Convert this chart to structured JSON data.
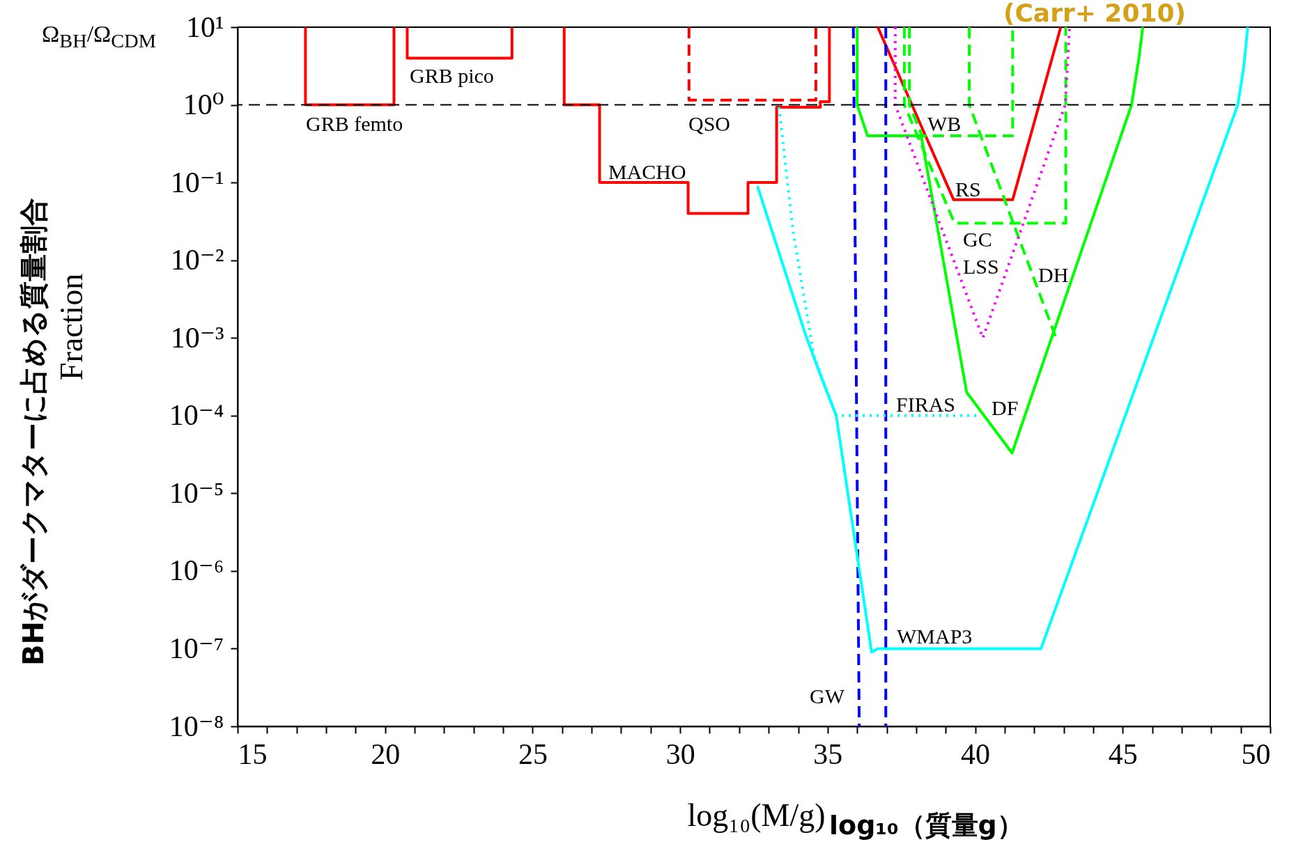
{
  "chart_data": {
    "type": "line",
    "xlabel": "log₁₀(M/g)",
    "ylabel": "Fraction",
    "log": "y",
    "xlim": [
      15,
      50
    ],
    "xticks": [
      15,
      {
        "value": 16,
        "label": null
      },
      {
        "value": 17,
        "label": null
      },
      {
        "value": 18,
        "label": null
      },
      {
        "value": 19,
        "label": null
      },
      20,
      {
        "value": 21,
        "label": null
      },
      {
        "value": 22,
        "label": null
      },
      {
        "value": 23,
        "label": null
      },
      {
        "value": 24,
        "label": null
      },
      25,
      {
        "value": 26,
        "label": null
      },
      {
        "value": 27,
        "label": null
      },
      {
        "value": 28,
        "label": null
      },
      {
        "value": 29,
        "label": null
      },
      30,
      {
        "value": 31,
        "label": null
      },
      {
        "value": 32,
        "label": null
      },
      {
        "value": 33,
        "label": null
      },
      {
        "value": 34,
        "label": null
      },
      35,
      {
        "value": 36,
        "label": null
      },
      {
        "value": 37,
        "label": null
      },
      {
        "value": 38,
        "label": null
      },
      {
        "value": 39,
        "label": null
      },
      40,
      {
        "value": 41,
        "label": null
      },
      {
        "value": 42,
        "label": null
      },
      {
        "value": 43,
        "label": null
      },
      {
        "value": 44,
        "label": null
      },
      45,
      {
        "value": 46,
        "label": null
      },
      {
        "value": 47,
        "label": null
      },
      {
        "value": 48,
        "label": null
      },
      {
        "value": 49,
        "label": null
      },
      50
    ],
    "ylim": [
      1e-08,
      10
    ],
    "yticks": [
      {
        "value": 10,
        "label": "10¹"
      },
      {
        "value": 1,
        "label": "10⁰"
      },
      {
        "value": 0.1,
        "label": "10⁻¹"
      },
      {
        "value": 0.01,
        "label": "10⁻²"
      },
      {
        "value": 0.001,
        "label": "10⁻³"
      },
      {
        "value": 0.0001,
        "label": "10⁻⁴"
      },
      {
        "value": 1e-05,
        "label": "10⁻⁵"
      },
      {
        "value": 1e-06,
        "label": "10⁻⁶"
      },
      {
        "value": 1e-07,
        "label": "10⁻⁷"
      },
      {
        "value": 1e-08,
        "label": "10⁻⁸"
      }
    ],
    "series": [
      {
        "color": "#ff0000",
        "line_style": "solid",
        "x": [
          17.3,
          17.3,
          20.3,
          20.3
        ],
        "values": [
          10,
          1,
          1,
          10
        ]
      },
      {
        "color": "#ff0000",
        "line_style": "solid",
        "x": [
          20.75,
          20.75,
          24.3,
          24.3
        ],
        "values": [
          10,
          4,
          4,
          10
        ]
      },
      {
        "color": "#ff0000",
        "line_style": "solid",
        "x": [
          26.07,
          26.07,
          27.27,
          27.27,
          30.27,
          30.27,
          32.3,
          32.3,
          33.27,
          33.27,
          34.75,
          34.75,
          35.06,
          35.06
        ],
        "values": [
          10,
          1,
          1,
          0.1,
          0.1,
          0.04,
          0.04,
          0.1,
          0.1,
          0.93,
          0.93,
          1.1,
          1.1,
          10
        ]
      },
      {
        "color": "#ff0000",
        "line_style": "dashed",
        "x": [
          30.3,
          30.3,
          34.6,
          34.6
        ],
        "values": [
          10,
          1.15,
          1.15,
          10
        ]
      },
      {
        "color": "#ff0000",
        "line_style": "solid",
        "x": [
          36.7,
          39.27,
          41.27,
          42.9
        ],
        "values": [
          10,
          0.06,
          0.06,
          10
        ]
      },
      {
        "color": "#0000ff",
        "line_style": "dashed",
        "x": [
          35.87,
          36.07
        ],
        "values": [
          10,
          1e-08
        ]
      },
      {
        "color": "#0000ff",
        "line_style": "dashed",
        "x": [
          36.97,
          36.97
        ],
        "values": [
          10,
          1e-08
        ]
      },
      {
        "color": "#00ffff",
        "line_style": "solid",
        "x": [
          32.62,
          34.25,
          34.8,
          35.29,
          36.49,
          36.7,
          42.23,
          48.9,
          49.1,
          49.24
        ],
        "values": [
          0.09,
          0.0011,
          0.0003,
          0.0001,
          9e-08,
          1e-07,
          1e-07,
          1,
          3,
          10
        ]
      },
      {
        "color": "#00ffff",
        "line_style": "dotted",
        "x": [
          33.35,
          33.83,
          34.53,
          35.29,
          40.13
        ],
        "values": [
          0.93,
          0.023,
          0.0006,
          0.0001,
          0.0001
        ]
      },
      {
        "color": "#00ff00",
        "line_style": "solid",
        "x": [
          36,
          36,
          36.35,
          38.17,
          39.71,
          41.25,
          45.3,
          45.55,
          45.68
        ],
        "values": [
          10,
          1,
          0.4,
          0.4,
          0.0002,
          3.3e-05,
          1,
          4,
          10
        ]
      },
      {
        "color": "#00ff00",
        "line_style": "dashed",
        "x": [
          37.6,
          37.6,
          39.3,
          43.07,
          43.07
        ],
        "values": [
          10,
          1,
          0.03,
          0.03,
          10
        ]
      },
      {
        "color": "#00ff00",
        "line_style": "dashed",
        "x": [
          37.77,
          37.77,
          38.2,
          41.27,
          41.27
        ],
        "values": [
          10,
          1,
          0.4,
          0.4,
          10
        ]
      },
      {
        "color": "#00ff00",
        "line_style": "dashed",
        "x": [
          39.8,
          39.8,
          42.74
        ],
        "values": [
          10,
          1,
          0.001
        ]
      },
      {
        "color": "#ff00ff",
        "line_style": "dotted",
        "x": [
          37.29,
          37.29,
          40.26,
          43.05,
          43.2
        ],
        "values": [
          10,
          1,
          0.001,
          1,
          10
        ]
      }
    ],
    "ref_lines": [
      {
        "axis": "y",
        "value": 1,
        "color": "#000000",
        "line_style": "dashed"
      }
    ],
    "annotations": [
      "(Carr+ 2010)",
      "Ω$_{BH}$/Ω$_{CDM}$",
      "BHがダークマターに占める質量割合",
      "log₁₀（質量g）",
      "GRB femto",
      "GRB pico",
      "QSO",
      "MACHO",
      "WB",
      "RS",
      "GC",
      "LSS",
      "DH",
      "FIRAS",
      "DF",
      "WMAP3",
      "GW"
    ]
  }
}
